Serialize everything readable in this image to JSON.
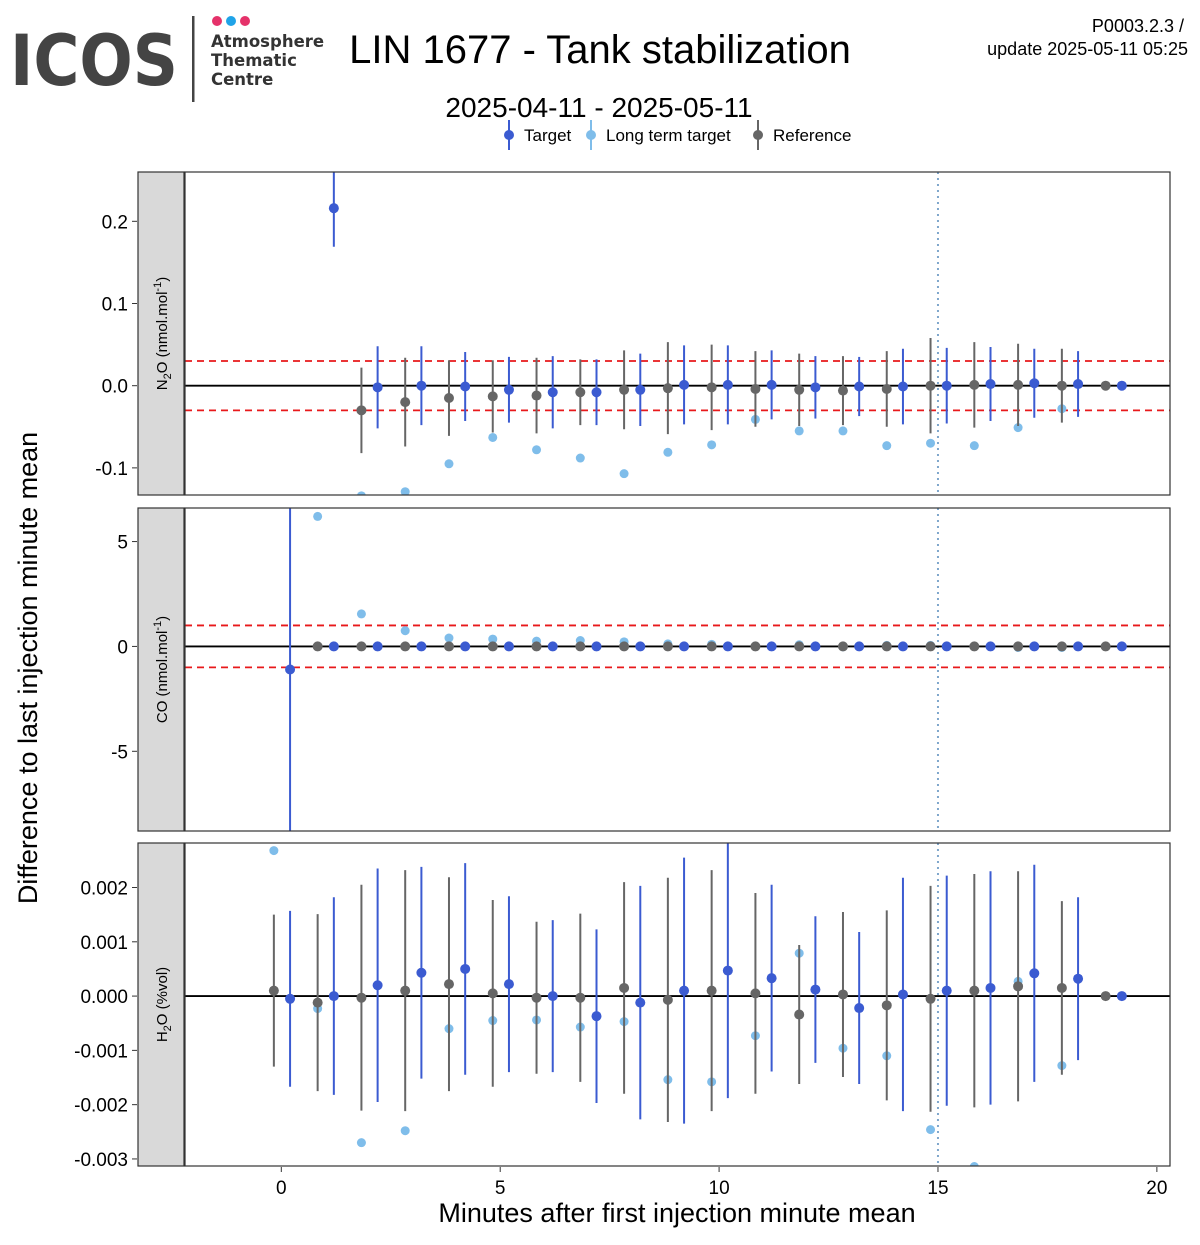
{
  "logo": {
    "name": "ICOS",
    "line1": "Atmosphere",
    "line2": "Thematic",
    "line3": "Centre",
    "dot_colors": [
      "#e5326a",
      "#1fa3e8",
      "#e5326a"
    ]
  },
  "header": {
    "title": "LIN 1677 - Tank stabilization",
    "subtitle": "2025-04-11 - 2025-05-11",
    "version": "P0003.2.3 /",
    "update": "update  2025-05-11 05:25"
  },
  "legend": {
    "placement": "top",
    "items": [
      {
        "label": "Target",
        "color": "#3b5bd1",
        "bar": true
      },
      {
        "label": "Long term target",
        "color": "#7fbdea",
        "bar": true
      },
      {
        "label": "Reference",
        "color": "#666666",
        "bar": true
      }
    ]
  },
  "colors": {
    "target": "#3b5bd1",
    "long_term_target": "#7fbdea",
    "reference": "#666666",
    "threshold": "#e8191b",
    "marker_line": "#7fa7cc",
    "strip_fill": "#d9d9d9"
  },
  "chart_data": {
    "type": "scatter",
    "xlabel": "Minutes after first injection minute mean",
    "ylabel": "Difference to last injection minute mean",
    "x_ticks": [
      "0",
      "5",
      "10",
      "15",
      "20"
    ],
    "x_tick_values": [
      0,
      5,
      10,
      15,
      20
    ],
    "xlim": [
      -2.2,
      20.3
    ],
    "vline_x": 15,
    "series_offsets": {
      "long_term_target": -0.17,
      "reference": -0.17,
      "target": 0.0
    },
    "panels": [
      {
        "strip_main": "N",
        "strip_sub": "2",
        "strip_rest": "O (nmol.mol",
        "strip_sup": "-1",
        "strip_end": ")",
        "ylim": [
          -0.133,
          0.26
        ],
        "y_ticks": [
          "0.2",
          "0.1",
          "0.0",
          "-0.1"
        ],
        "y_tick_values": [
          0.2,
          0.1,
          0.0,
          -0.1
        ],
        "thresholds": [
          0.03,
          -0.03
        ],
        "target": [
          {
            "x": 1.2,
            "y": 0.216,
            "err": 0.047
          },
          {
            "x": 2.2,
            "y": -0.002,
            "err": 0.05
          },
          {
            "x": 3.2,
            "y": 0.0,
            "err": 0.048
          },
          {
            "x": 4.2,
            "y": -0.001,
            "err": 0.042
          },
          {
            "x": 5.2,
            "y": -0.005,
            "err": 0.04
          },
          {
            "x": 6.2,
            "y": -0.008,
            "err": 0.044
          },
          {
            "x": 7.2,
            "y": -0.008,
            "err": 0.04
          },
          {
            "x": 8.2,
            "y": -0.005,
            "err": 0.044
          },
          {
            "x": 9.2,
            "y": 0.001,
            "err": 0.048
          },
          {
            "x": 10.2,
            "y": 0.001,
            "err": 0.048
          },
          {
            "x": 11.2,
            "y": 0.001,
            "err": 0.042
          },
          {
            "x": 12.2,
            "y": -0.002,
            "err": 0.038
          },
          {
            "x": 13.2,
            "y": -0.001,
            "err": 0.036
          },
          {
            "x": 14.2,
            "y": -0.001,
            "err": 0.046
          },
          {
            "x": 15.2,
            "y": 0.0,
            "err": 0.046
          },
          {
            "x": 16.2,
            "y": 0.002,
            "err": 0.045
          },
          {
            "x": 17.2,
            "y": 0.003,
            "err": 0.042
          },
          {
            "x": 18.2,
            "y": 0.002,
            "err": 0.04
          },
          {
            "x": 19.2,
            "y": 0.0,
            "err": 0.0
          }
        ],
        "reference": [
          {
            "x": 2.0,
            "y": -0.03,
            "err": 0.052
          },
          {
            "x": 3.0,
            "y": -0.02,
            "err": 0.054
          },
          {
            "x": 4.0,
            "y": -0.015,
            "err": 0.046
          },
          {
            "x": 5.0,
            "y": -0.013,
            "err": 0.044
          },
          {
            "x": 6.0,
            "y": -0.012,
            "err": 0.046
          },
          {
            "x": 7.0,
            "y": -0.008,
            "err": 0.04
          },
          {
            "x": 8.0,
            "y": -0.005,
            "err": 0.048
          },
          {
            "x": 9.0,
            "y": -0.003,
            "err": 0.056
          },
          {
            "x": 10.0,
            "y": -0.002,
            "err": 0.052
          },
          {
            "x": 11.0,
            "y": -0.004,
            "err": 0.046
          },
          {
            "x": 12.0,
            "y": -0.005,
            "err": 0.044
          },
          {
            "x": 13.0,
            "y": -0.006,
            "err": 0.042
          },
          {
            "x": 14.0,
            "y": -0.004,
            "err": 0.046
          },
          {
            "x": 15.0,
            "y": 0.0,
            "err": 0.058
          },
          {
            "x": 16.0,
            "y": 0.001,
            "err": 0.052
          },
          {
            "x": 17.0,
            "y": 0.001,
            "err": 0.05
          },
          {
            "x": 18.0,
            "y": 0.0,
            "err": 0.045
          },
          {
            "x": 19.0,
            "y": 0.0,
            "err": 0.0
          }
        ],
        "long_term_target": [
          {
            "x": 2.0,
            "y": -0.134
          },
          {
            "x": 3.0,
            "y": -0.129
          },
          {
            "x": 4.0,
            "y": -0.095
          },
          {
            "x": 5.0,
            "y": -0.063
          },
          {
            "x": 6.0,
            "y": -0.078
          },
          {
            "x": 7.0,
            "y": -0.088
          },
          {
            "x": 8.0,
            "y": -0.107
          },
          {
            "x": 9.0,
            "y": -0.081
          },
          {
            "x": 10.0,
            "y": -0.072
          },
          {
            "x": 11.0,
            "y": -0.041
          },
          {
            "x": 12.0,
            "y": -0.055
          },
          {
            "x": 13.0,
            "y": -0.055
          },
          {
            "x": 14.0,
            "y": -0.073
          },
          {
            "x": 15.0,
            "y": -0.07
          },
          {
            "x": 16.0,
            "y": -0.073
          },
          {
            "x": 17.0,
            "y": -0.051
          },
          {
            "x": 18.0,
            "y": -0.028
          },
          {
            "x": 19.0,
            "y": 0.0
          }
        ]
      },
      {
        "strip_main": "CO (nmol.mol",
        "strip_sub": "",
        "strip_rest": "",
        "strip_sup": "-1",
        "strip_end": ")",
        "ylim": [
          -8.8,
          6.6
        ],
        "y_ticks": [
          "5",
          "0",
          "-5"
        ],
        "y_tick_values": [
          5,
          0,
          -5
        ],
        "thresholds": [
          1,
          -1
        ],
        "target": [
          {
            "x": 0.2,
            "y": -1.1,
            "err": 10.0
          },
          {
            "x": 1.2,
            "y": 0.0,
            "err": 0.0
          },
          {
            "x": 2.2,
            "y": 0.0,
            "err": 0.0
          },
          {
            "x": 3.2,
            "y": 0.0,
            "err": 0.0
          },
          {
            "x": 4.2,
            "y": 0.0,
            "err": 0.0
          },
          {
            "x": 5.2,
            "y": 0.0,
            "err": 0.0
          },
          {
            "x": 6.2,
            "y": 0.0,
            "err": 0.0
          },
          {
            "x": 7.2,
            "y": 0.0,
            "err": 0.0
          },
          {
            "x": 8.2,
            "y": 0.0,
            "err": 0.0
          },
          {
            "x": 9.2,
            "y": 0.0,
            "err": 0.0
          },
          {
            "x": 10.2,
            "y": 0.0,
            "err": 0.0
          },
          {
            "x": 11.2,
            "y": 0.0,
            "err": 0.0
          },
          {
            "x": 12.2,
            "y": 0.0,
            "err": 0.0
          },
          {
            "x": 13.2,
            "y": 0.0,
            "err": 0.0
          },
          {
            "x": 14.2,
            "y": 0.0,
            "err": 0.0
          },
          {
            "x": 15.2,
            "y": 0.0,
            "err": 0.0
          },
          {
            "x": 16.2,
            "y": 0.0,
            "err": 0.0
          },
          {
            "x": 17.2,
            "y": 0.0,
            "err": 0.0
          },
          {
            "x": 18.2,
            "y": 0.0,
            "err": 0.0
          },
          {
            "x": 19.2,
            "y": 0.0,
            "err": 0.0
          }
        ],
        "reference": [
          {
            "x": 1.0,
            "y": 0.0,
            "err": 0.0
          },
          {
            "x": 2.0,
            "y": 0.0,
            "err": 0.0
          },
          {
            "x": 3.0,
            "y": 0.0,
            "err": 0.0
          },
          {
            "x": 4.0,
            "y": 0.0,
            "err": 0.0
          },
          {
            "x": 5.0,
            "y": 0.0,
            "err": 0.0
          },
          {
            "x": 6.0,
            "y": 0.0,
            "err": 0.0
          },
          {
            "x": 7.0,
            "y": 0.0,
            "err": 0.0
          },
          {
            "x": 8.0,
            "y": 0.0,
            "err": 0.0
          },
          {
            "x": 9.0,
            "y": 0.0,
            "err": 0.0
          },
          {
            "x": 10.0,
            "y": 0.0,
            "err": 0.0
          },
          {
            "x": 11.0,
            "y": 0.0,
            "err": 0.0
          },
          {
            "x": 12.0,
            "y": 0.0,
            "err": 0.0
          },
          {
            "x": 13.0,
            "y": 0.0,
            "err": 0.0
          },
          {
            "x": 14.0,
            "y": 0.0,
            "err": 0.0
          },
          {
            "x": 15.0,
            "y": 0.0,
            "err": 0.0
          },
          {
            "x": 16.0,
            "y": 0.0,
            "err": 0.0
          },
          {
            "x": 17.0,
            "y": 0.0,
            "err": 0.0
          },
          {
            "x": 18.0,
            "y": 0.0,
            "err": 0.0
          },
          {
            "x": 19.0,
            "y": 0.0,
            "err": 0.0
          }
        ],
        "long_term_target": [
          {
            "x": 1.0,
            "y": 6.2
          },
          {
            "x": 2.0,
            "y": 1.55
          },
          {
            "x": 3.0,
            "y": 0.75
          },
          {
            "x": 4.0,
            "y": 0.4
          },
          {
            "x": 5.0,
            "y": 0.35
          },
          {
            "x": 6.0,
            "y": 0.25
          },
          {
            "x": 7.0,
            "y": 0.28
          },
          {
            "x": 8.0,
            "y": 0.22
          },
          {
            "x": 9.0,
            "y": 0.12
          },
          {
            "x": 10.0,
            "y": 0.1
          },
          {
            "x": 11.0,
            "y": 0.02
          },
          {
            "x": 12.0,
            "y": 0.08
          },
          {
            "x": 13.0,
            "y": -0.02
          },
          {
            "x": 14.0,
            "y": 0.05
          },
          {
            "x": 15.0,
            "y": 0.05
          },
          {
            "x": 16.0,
            "y": 0.0
          },
          {
            "x": 17.0,
            "y": -0.05
          },
          {
            "x": 18.0,
            "y": -0.05
          },
          {
            "x": 19.0,
            "y": 0.0
          }
        ]
      },
      {
        "strip_main": "H",
        "strip_sub": "2",
        "strip_rest": "O (%vol)",
        "strip_sup": "",
        "strip_end": "",
        "ylim": [
          -0.00313,
          0.00282
        ],
        "y_ticks": [
          "0.002",
          "0.001",
          "0.000",
          "-0.001",
          "-0.002",
          "-0.003"
        ],
        "y_tick_values": [
          0.002,
          0.001,
          0.0,
          -0.001,
          -0.002,
          -0.003
        ],
        "thresholds": [],
        "target": [
          {
            "x": 0.2,
            "y": -5e-05,
            "err": 0.00162
          },
          {
            "x": 1.2,
            "y": 0.0,
            "err": 0.00182
          },
          {
            "x": 2.2,
            "y": 0.0002,
            "err": 0.00215
          },
          {
            "x": 3.2,
            "y": 0.00043,
            "err": 0.00195
          },
          {
            "x": 4.2,
            "y": 0.0005,
            "err": 0.00195
          },
          {
            "x": 5.2,
            "y": 0.00022,
            "err": 0.00162
          },
          {
            "x": 6.2,
            "y": 0.0,
            "err": 0.0014
          },
          {
            "x": 7.2,
            "y": -0.00037,
            "err": 0.0016
          },
          {
            "x": 8.2,
            "y": -0.00012,
            "err": 0.00215
          },
          {
            "x": 9.2,
            "y": 0.0001,
            "err": 0.00245
          },
          {
            "x": 10.2,
            "y": 0.00047,
            "err": 0.00235
          },
          {
            "x": 11.2,
            "y": 0.00033,
            "err": 0.00172
          },
          {
            "x": 12.2,
            "y": 0.00012,
            "err": 0.00135
          },
          {
            "x": 13.2,
            "y": -0.00022,
            "err": 0.0014
          },
          {
            "x": 14.2,
            "y": 3e-05,
            "err": 0.00215
          },
          {
            "x": 15.2,
            "y": 0.0001,
            "err": 0.00212
          },
          {
            "x": 16.2,
            "y": 0.00015,
            "err": 0.00215
          },
          {
            "x": 17.2,
            "y": 0.00042,
            "err": 0.002
          },
          {
            "x": 18.2,
            "y": 0.00032,
            "err": 0.0015
          },
          {
            "x": 19.2,
            "y": 0.0,
            "err": 0.0
          }
        ],
        "reference": [
          {
            "x": 0.0,
            "y": 0.0001,
            "err": 0.0014
          },
          {
            "x": 1.0,
            "y": -0.00012,
            "err": 0.00163
          },
          {
            "x": 2.0,
            "y": -3e-05,
            "err": 0.00208
          },
          {
            "x": 3.0,
            "y": 0.0001,
            "err": 0.00222
          },
          {
            "x": 4.0,
            "y": 0.00022,
            "err": 0.00197
          },
          {
            "x": 5.0,
            "y": 5e-05,
            "err": 0.00172
          },
          {
            "x": 6.0,
            "y": -3e-05,
            "err": 0.0014
          },
          {
            "x": 7.0,
            "y": -3e-05,
            "err": 0.00155
          },
          {
            "x": 8.0,
            "y": 0.00015,
            "err": 0.00195
          },
          {
            "x": 9.0,
            "y": -7e-05,
            "err": 0.00225
          },
          {
            "x": 10.0,
            "y": 0.0001,
            "err": 0.00222
          },
          {
            "x": 11.0,
            "y": 5e-05,
            "err": 0.00185
          },
          {
            "x": 12.0,
            "y": -0.00034,
            "err": 0.00128
          },
          {
            "x": 13.0,
            "y": 3e-05,
            "err": 0.00152
          },
          {
            "x": 14.0,
            "y": -0.00017,
            "err": 0.00175
          },
          {
            "x": 15.0,
            "y": -5e-05,
            "err": 0.00208
          },
          {
            "x": 16.0,
            "y": 0.0001,
            "err": 0.00215
          },
          {
            "x": 17.0,
            "y": 0.00018,
            "err": 0.00212
          },
          {
            "x": 18.0,
            "y": 0.00015,
            "err": 0.0016
          },
          {
            "x": 19.0,
            "y": 0.0,
            "err": 0.0
          }
        ],
        "long_term_target": [
          {
            "x": 0.0,
            "y": 0.00268
          },
          {
            "x": 1.0,
            "y": -0.00023
          },
          {
            "x": 2.0,
            "y": -0.0027
          },
          {
            "x": 3.0,
            "y": -0.00248
          },
          {
            "x": 4.0,
            "y": -0.0006
          },
          {
            "x": 5.0,
            "y": -0.00045
          },
          {
            "x": 6.0,
            "y": -0.00044
          },
          {
            "x": 7.0,
            "y": -0.00057
          },
          {
            "x": 8.0,
            "y": -0.00047
          },
          {
            "x": 9.0,
            "y": -0.00154
          },
          {
            "x": 10.0,
            "y": -0.00158
          },
          {
            "x": 11.0,
            "y": -0.00073
          },
          {
            "x": 12.0,
            "y": 0.00079
          },
          {
            "x": 13.0,
            "y": -0.00096
          },
          {
            "x": 14.0,
            "y": -0.0011
          },
          {
            "x": 15.0,
            "y": -0.00246
          },
          {
            "x": 16.0,
            "y": -0.00314
          },
          {
            "x": 17.0,
            "y": 0.00027
          },
          {
            "x": 18.0,
            "y": -0.00128
          },
          {
            "x": 19.0,
            "y": 0.0
          }
        ]
      }
    ]
  }
}
